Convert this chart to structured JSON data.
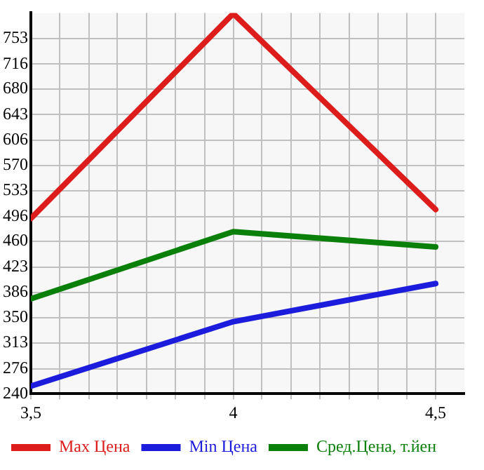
{
  "chart_data": {
    "type": "line",
    "x": [
      3.5,
      4,
      4.5
    ],
    "series": [
      {
        "name": "Max Цена",
        "color": "#dd1c1c",
        "values": [
          493,
          789,
          506
        ]
      },
      {
        "name": "Min Цена",
        "color": "#1c1cdd",
        "values": [
          251,
          344,
          399
        ]
      },
      {
        "name": "Сред.Цена, т.йен",
        "color": "#0a800a",
        "values": [
          377,
          474,
          452
        ]
      }
    ],
    "xlim": [
      3.5,
      4.571
    ],
    "xticks": [
      {
        "value": 3.5,
        "label": "3,5"
      },
      {
        "value": 3.571,
        "label": null
      },
      {
        "value": 3.643,
        "label": null
      },
      {
        "value": 3.714,
        "label": null
      },
      {
        "value": 3.786,
        "label": null
      },
      {
        "value": 3.857,
        "label": null
      },
      {
        "value": 3.929,
        "label": null
      },
      {
        "value": 4,
        "label": "4"
      },
      {
        "value": 4.071,
        "label": null
      },
      {
        "value": 4.143,
        "label": null
      },
      {
        "value": 4.214,
        "label": null
      },
      {
        "value": 4.286,
        "label": null
      },
      {
        "value": 4.357,
        "label": null
      },
      {
        "value": 4.429,
        "label": null
      },
      {
        "value": 4.5,
        "label": "4,5"
      }
    ],
    "ylim": [
      240,
      790
    ],
    "yticks": [
      240,
      276,
      313,
      350,
      386,
      423,
      460,
      496,
      533,
      570,
      606,
      643,
      680,
      716,
      753
    ],
    "grid": true,
    "legend": "bottom",
    "marker": "none",
    "line_style": "solid"
  }
}
